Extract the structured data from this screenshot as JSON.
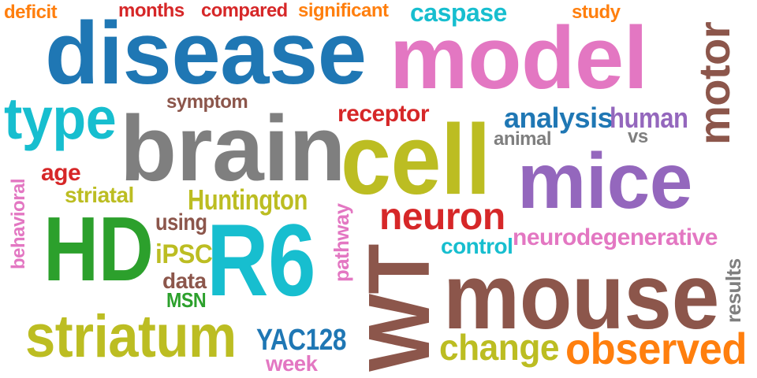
{
  "word_cloud": {
    "words": [
      {
        "text": "deficit",
        "color": "#ff7f0e"
      },
      {
        "text": "months",
        "color": "#d62728"
      },
      {
        "text": "compared",
        "color": "#d62728"
      },
      {
        "text": "significant",
        "color": "#ff7f0e"
      },
      {
        "text": "caspase",
        "color": "#17becf"
      },
      {
        "text": "study",
        "color": "#ff7f0e"
      },
      {
        "text": "disease",
        "color": "#1f77b4"
      },
      {
        "text": "model",
        "color": "#e377c2"
      },
      {
        "text": "motor",
        "color": "#8c564b"
      },
      {
        "text": "type",
        "color": "#17becf"
      },
      {
        "text": "symptom",
        "color": "#8c564b"
      },
      {
        "text": "brain",
        "color": "#7f7f7f"
      },
      {
        "text": "receptor",
        "color": "#d62728"
      },
      {
        "text": "analysis",
        "color": "#1f77b4"
      },
      {
        "text": "human",
        "color": "#9467bd"
      },
      {
        "text": "animal",
        "color": "#7f7f7f"
      },
      {
        "text": "vs",
        "color": "#7f7f7f"
      },
      {
        "text": "cell",
        "color": "#bcbd22"
      },
      {
        "text": "mice",
        "color": "#9467bd"
      },
      {
        "text": "age",
        "color": "#d62728"
      },
      {
        "text": "behavioral",
        "color": "#e377c2"
      },
      {
        "text": "striatal",
        "color": "#bcbd22"
      },
      {
        "text": "Huntington",
        "color": "#bcbd22"
      },
      {
        "text": "neuron",
        "color": "#d62728"
      },
      {
        "text": "pathway",
        "color": "#e377c2"
      },
      {
        "text": "HD",
        "color": "#2ca02c"
      },
      {
        "text": "using",
        "color": "#8c564b"
      },
      {
        "text": "R6",
        "color": "#17becf"
      },
      {
        "text": "neurodegenerative",
        "color": "#e377c2"
      },
      {
        "text": "control",
        "color": "#17becf"
      },
      {
        "text": "iPSC",
        "color": "#bcbd22"
      },
      {
        "text": "data",
        "color": "#8c564b"
      },
      {
        "text": "MSN",
        "color": "#2ca02c"
      },
      {
        "text": "WT",
        "color": "#8c564b"
      },
      {
        "text": "mouse",
        "color": "#8c564b"
      },
      {
        "text": "results",
        "color": "#7f7f7f"
      },
      {
        "text": "striatum",
        "color": "#bcbd22"
      },
      {
        "text": "YAC128",
        "color": "#1f77b4"
      },
      {
        "text": "week",
        "color": "#e377c2"
      },
      {
        "text": "change",
        "color": "#bcbd22"
      },
      {
        "text": "observed",
        "color": "#ff7f0e"
      }
    ]
  }
}
